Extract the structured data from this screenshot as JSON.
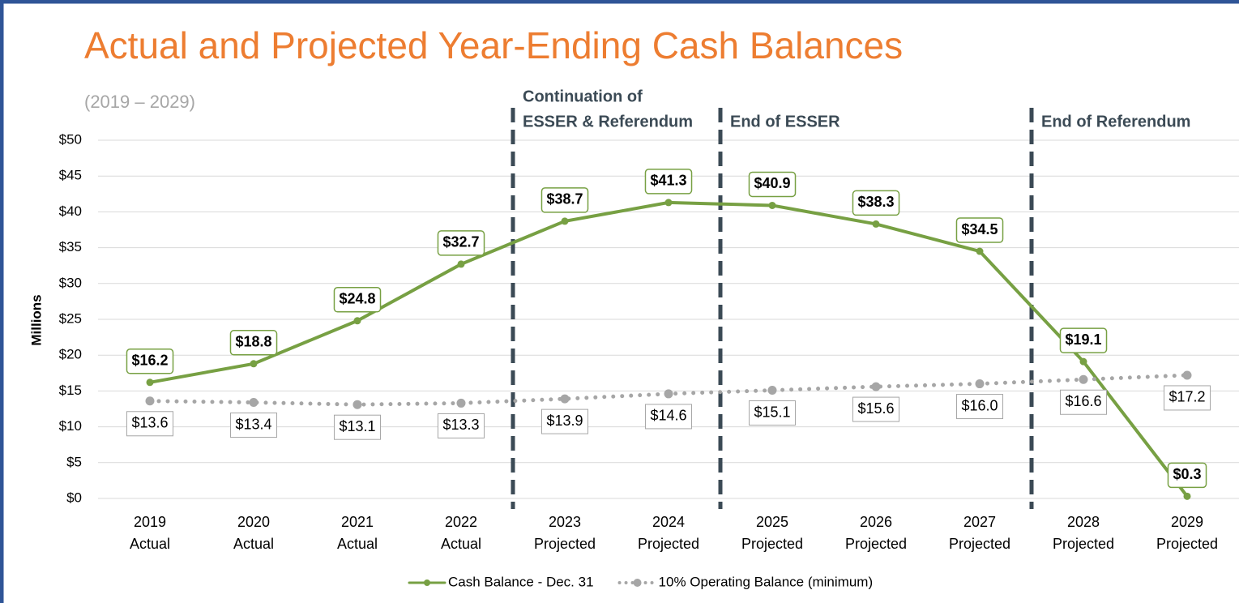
{
  "chart_data": {
    "type": "line",
    "title": "Actual and Projected Year-Ending Cash Balances",
    "subtitle": "(2019 – 2029)",
    "y_label": "Millions",
    "categories": [
      [
        "2019",
        "Actual"
      ],
      [
        "2020",
        "Actual"
      ],
      [
        "2021",
        "Actual"
      ],
      [
        "2022",
        "Actual"
      ],
      [
        "2023",
        "Projected"
      ],
      [
        "2024",
        "Projected"
      ],
      [
        "2025",
        "Projected"
      ],
      [
        "2026",
        "Projected"
      ],
      [
        "2027",
        "Projected"
      ],
      [
        "2028",
        "Projected"
      ],
      [
        "2029",
        "Projected"
      ]
    ],
    "series": [
      {
        "name": "Cash Balance - Dec. 31",
        "color": "#77a043",
        "style": "solid",
        "values": [
          16.2,
          18.8,
          24.8,
          32.7,
          38.7,
          41.3,
          40.9,
          38.3,
          34.5,
          19.1,
          0.3
        ],
        "value_labels": [
          "$16.2",
          "$18.8",
          "$24.8",
          "$32.7",
          "$38.7",
          "$41.3",
          "$40.9",
          "$38.3",
          "$34.5",
          "$19.1",
          "$0.3"
        ]
      },
      {
        "name": "10% Operating Balance (minimum)",
        "color": "#a6a6a6",
        "style": "dotted",
        "values": [
          13.6,
          13.4,
          13.1,
          13.3,
          13.9,
          14.6,
          15.1,
          15.6,
          16.0,
          16.6,
          17.2
        ],
        "value_labels": [
          "$13.6",
          "$13.4",
          "$13.1",
          "$13.3",
          "$13.9",
          "$14.6",
          "$15.1",
          "$15.6",
          "$16.0",
          "$16.6",
          "$17.2"
        ]
      }
    ],
    "annotations": [
      [
        "Continuation of",
        "ESSER & Referendum"
      ],
      [
        "End of ESSER"
      ],
      [
        "End of Referendum"
      ]
    ],
    "ylim": [
      0,
      50
    ],
    "yticks": [
      {
        "value": 0,
        "label": "$0"
      },
      {
        "value": 5,
        "label": "$5"
      },
      {
        "value": 10,
        "label": "$10"
      },
      {
        "value": 15,
        "label": "$15"
      },
      {
        "value": 20,
        "label": "$20"
      },
      {
        "value": 25,
        "label": "$25"
      },
      {
        "value": 30,
        "label": "$30"
      },
      {
        "value": 35,
        "label": "$35"
      },
      {
        "value": 40,
        "label": "$40"
      },
      {
        "value": 45,
        "label": "$45"
      },
      {
        "value": 50,
        "label": "$50"
      }
    ],
    "grid": true,
    "legend": "bottom"
  }
}
